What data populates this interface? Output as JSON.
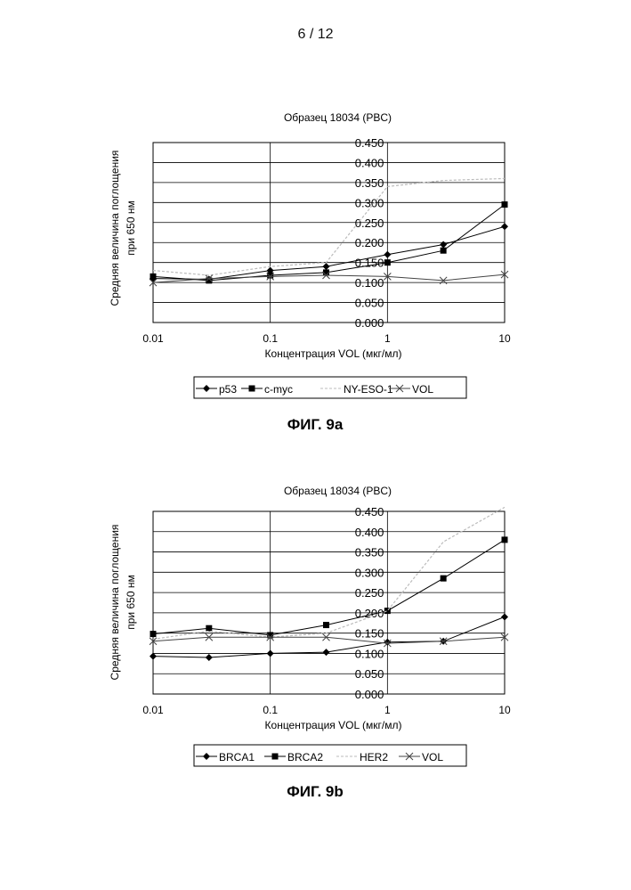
{
  "page": {
    "number": "6 / 12"
  },
  "figures": [
    {
      "caption": "ФИГ. 9a"
    },
    {
      "caption": "ФИГ. 9b"
    }
  ],
  "chart_data": [
    {
      "type": "line",
      "title": "Образец 18034 (PBC)",
      "xlabel": "Концентрация VOL (мкг/мл)",
      "ylabel_lines": [
        "Средняя величина поглощения",
        "при 650 нм"
      ],
      "x_scale": "log",
      "xlim": [
        0.01,
        10
      ],
      "ylim": [
        0,
        0.45
      ],
      "x_ticks": [
        "0.01",
        "0.1",
        "1",
        "10"
      ],
      "y_ticks": [
        "0.000",
        "0.050",
        "0.100",
        "0.150",
        "0.200",
        "0.250",
        "0.300",
        "0.350",
        "0.400",
        "0.450"
      ],
      "grid": true,
      "legend_position": "bottom",
      "x": [
        0.01,
        0.03,
        0.1,
        0.3,
        1,
        3,
        10
      ],
      "series": [
        {
          "name": "p53",
          "marker": "diamond",
          "color": "#000000",
          "values": [
            0.11,
            0.108,
            0.13,
            0.14,
            0.17,
            0.195,
            0.24
          ]
        },
        {
          "name": "c-myc",
          "marker": "square",
          "color": "#000000",
          "values": [
            0.115,
            0.105,
            0.118,
            0.125,
            0.15,
            0.18,
            0.295
          ]
        },
        {
          "name": "NY-ESO-1",
          "marker": "none",
          "color": "#bbbbbb",
          "values": [
            0.13,
            0.118,
            0.14,
            0.15,
            0.34,
            0.355,
            0.36
          ]
        },
        {
          "name": "VOL",
          "marker": "x",
          "color": "#444444",
          "values": [
            0.1,
            0.11,
            0.115,
            0.118,
            0.115,
            0.105,
            0.12
          ]
        }
      ]
    },
    {
      "type": "line",
      "title": "Образец 18034 (PBC)",
      "xlabel": "Концентрация VOL (мкг/мл)",
      "ylabel_lines": [
        "Средняя величина поглощения",
        "при 650 нм"
      ],
      "x_scale": "log",
      "xlim": [
        0.01,
        10
      ],
      "ylim": [
        0,
        0.45
      ],
      "x_ticks": [
        "0.01",
        "0.1",
        "1",
        "10"
      ],
      "y_ticks": [
        "0.000",
        "0.050",
        "0.100",
        "0.150",
        "0.200",
        "0.250",
        "0.300",
        "0.350",
        "0.400",
        "0.450"
      ],
      "grid": true,
      "legend_position": "bottom",
      "x": [
        0.01,
        0.03,
        0.1,
        0.3,
        1,
        3,
        10
      ],
      "series": [
        {
          "name": "BRCA1",
          "marker": "diamond",
          "color": "#000000",
          "values": [
            0.093,
            0.09,
            0.1,
            0.103,
            0.128,
            0.13,
            0.19
          ]
        },
        {
          "name": "BRCA2",
          "marker": "square",
          "color": "#000000",
          "values": [
            0.148,
            0.162,
            0.145,
            0.17,
            0.205,
            0.285,
            0.38
          ]
        },
        {
          "name": "HER2",
          "marker": "none",
          "color": "#bbbbbb",
          "values": [
            0.135,
            0.155,
            0.14,
            0.15,
            0.205,
            0.375,
            0.46
          ]
        },
        {
          "name": "VOL",
          "marker": "x",
          "color": "#444444",
          "values": [
            0.13,
            0.14,
            0.14,
            0.14,
            0.125,
            0.13,
            0.14
          ]
        }
      ]
    }
  ]
}
